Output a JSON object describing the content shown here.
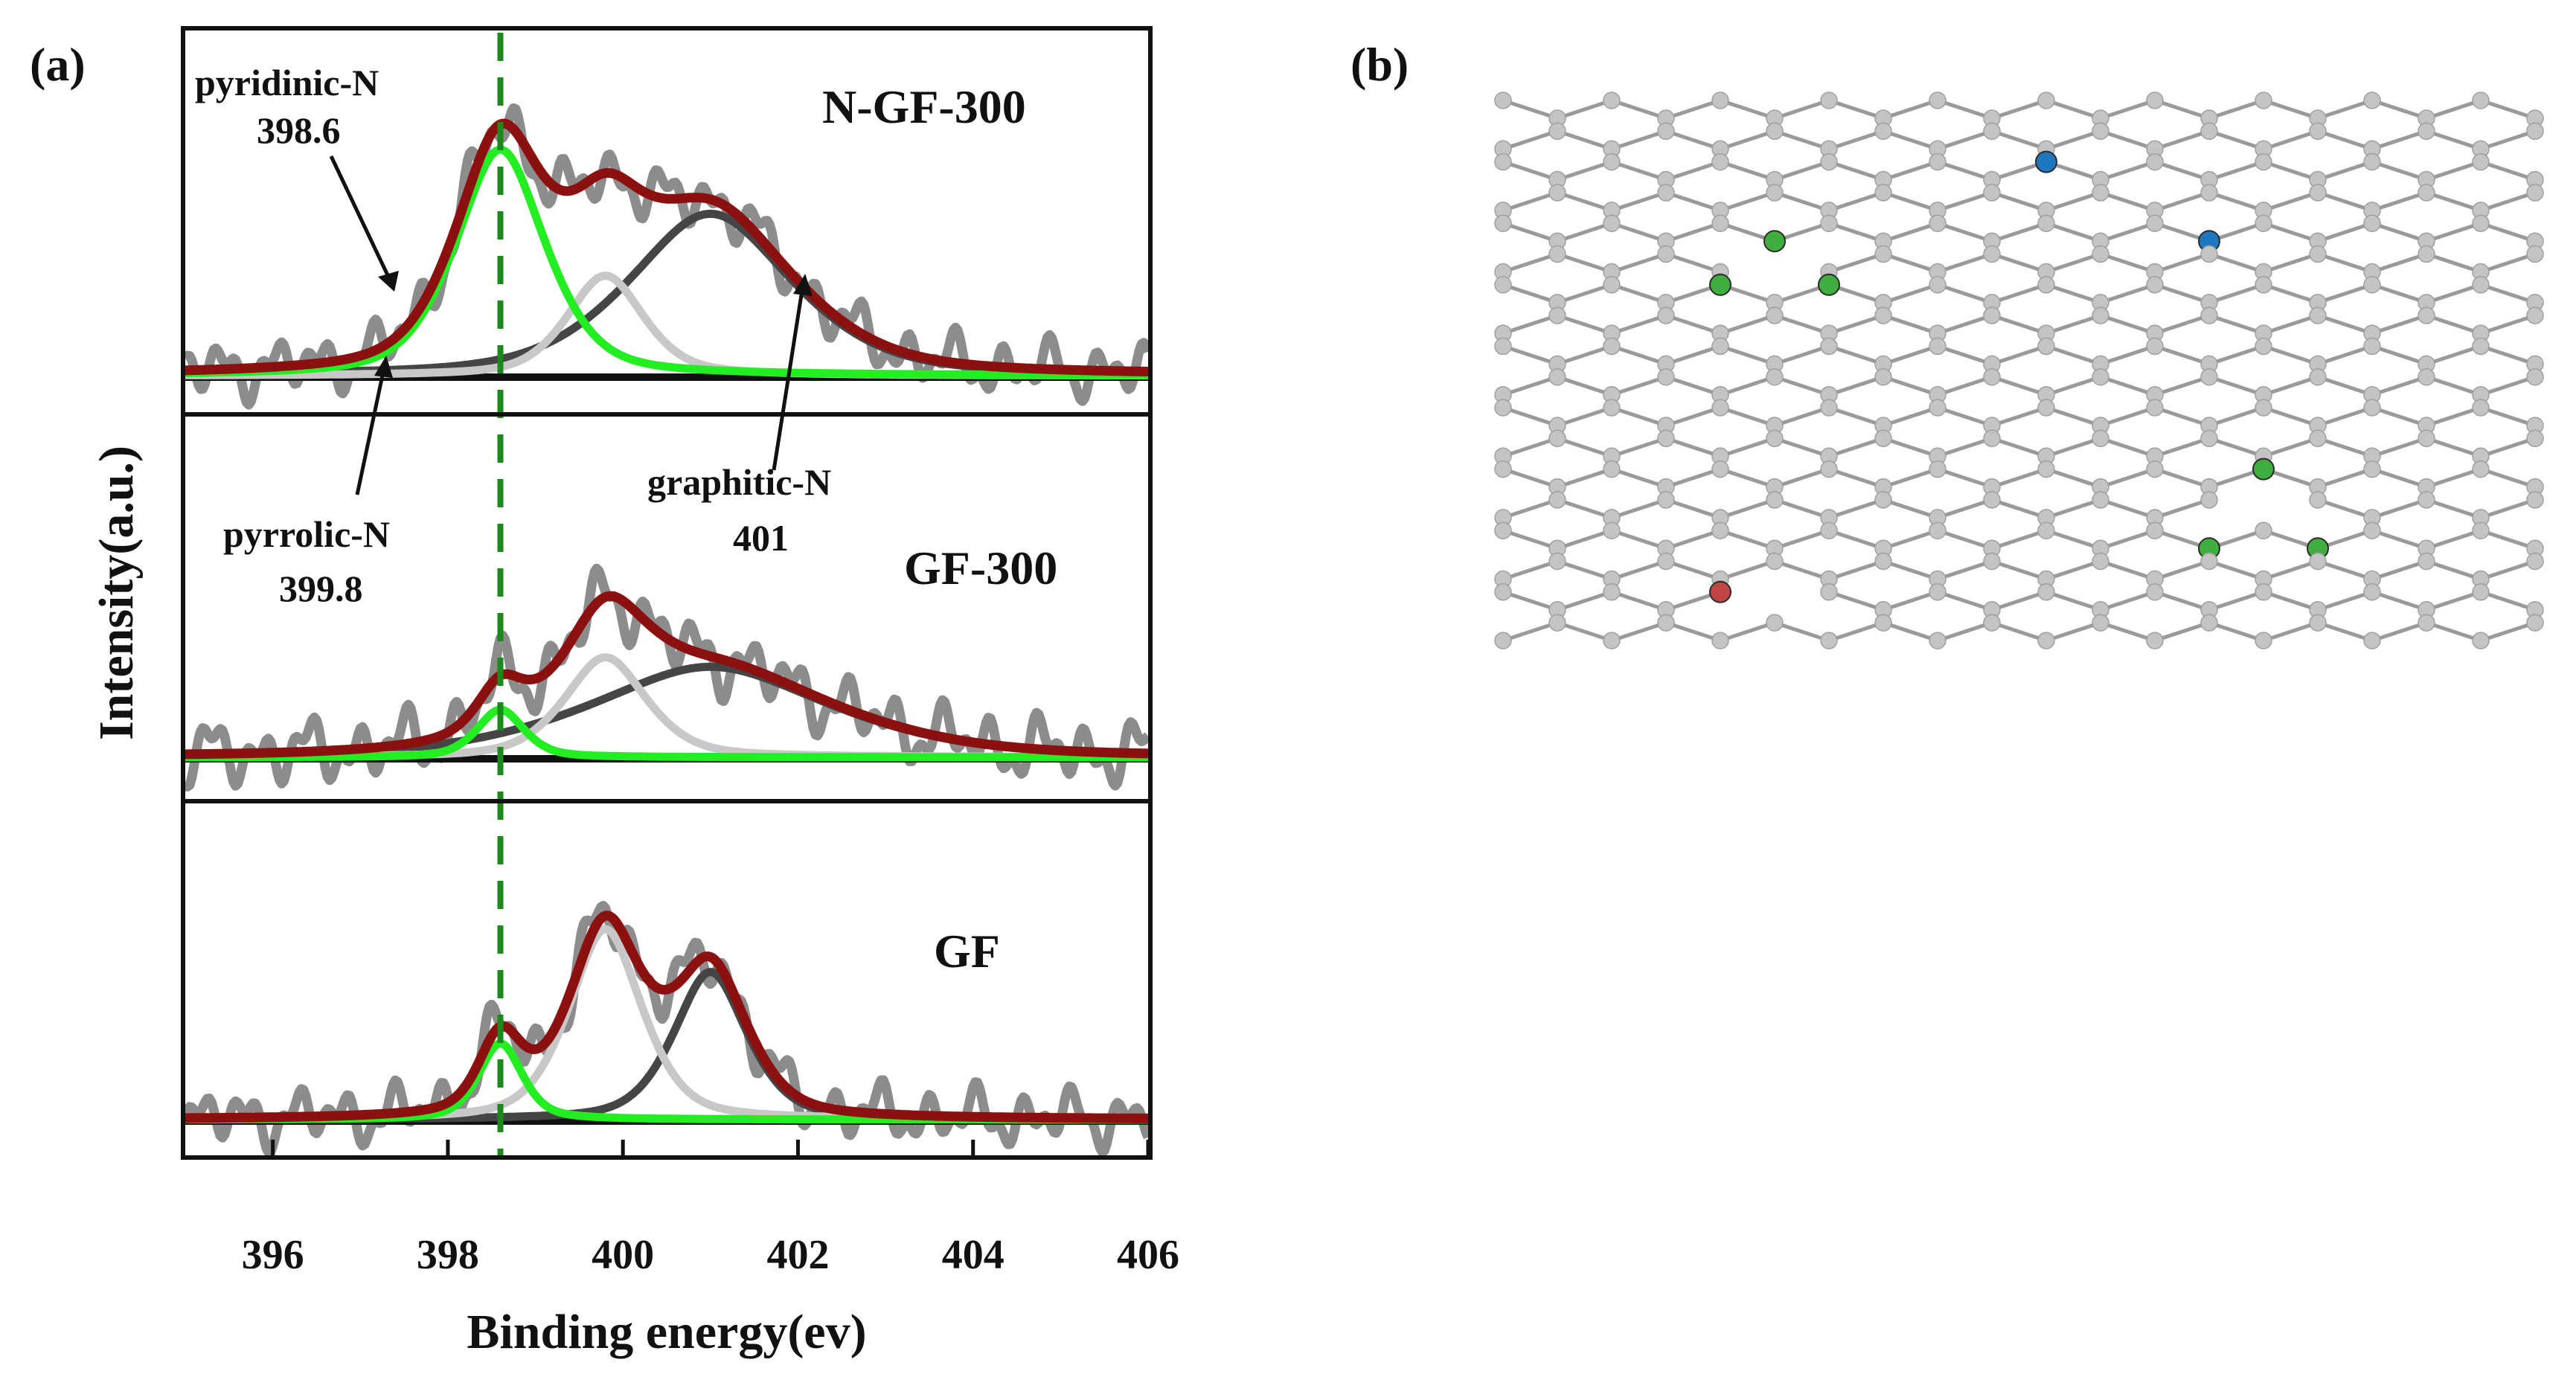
{
  "chart_data": {
    "type": "line",
    "panel_label": "(a)",
    "xlabel": "Binding energy(ev)",
    "ylabel": "Intensity(a.u.)",
    "xlim": [
      395,
      406
    ],
    "xticks": [
      396,
      398,
      400,
      402,
      404,
      406
    ],
    "reference_line_x": 398.6,
    "colors": {
      "raw": "#8c8c8c",
      "fit": "#8b1010",
      "pyridinic": "#22ee22",
      "pyrrolic": "#c8c8c8",
      "graphitic": "#454545",
      "baseline": "#111111",
      "reference": "#1a8a1a"
    },
    "annotations": [
      {
        "text": "pyridinic-N",
        "value": "398.6",
        "component": "pyridinic"
      },
      {
        "text": "pyrrolic-N",
        "value": "399.8",
        "component": "pyrrolic"
      },
      {
        "text": "graphitic-N",
        "value": "401",
        "component": "graphitic"
      }
    ],
    "subplots": [
      {
        "name": "N-GF-300",
        "ylim": [
          0,
          1.35
        ],
        "components": [
          {
            "name": "pyridinic-N",
            "center": 398.6,
            "height": 0.95,
            "sigma": 0.55,
            "gamma": 0.55
          },
          {
            "name": "pyrrolic-N",
            "center": 399.8,
            "height": 0.42,
            "sigma": 0.45,
            "gamma": 0.5
          },
          {
            "name": "graphitic-N",
            "center": 401.0,
            "height": 0.68,
            "sigma": 1.0,
            "gamma": 1.0
          }
        ],
        "noise_amp": 0.07
      },
      {
        "name": "GF-300",
        "ylim": [
          0,
          1.35
        ],
        "components": [
          {
            "name": "pyridinic-N",
            "center": 398.6,
            "height": 0.2,
            "sigma": 0.28,
            "gamma": 0.3
          },
          {
            "name": "pyrrolic-N",
            "center": 399.8,
            "height": 0.42,
            "sigma": 0.5,
            "gamma": 0.5
          },
          {
            "name": "graphitic-N",
            "center": 401.0,
            "height": 0.38,
            "sigma": 1.5,
            "gamma": 1.4
          }
        ],
        "noise_amp": 0.08
      },
      {
        "name": "GF",
        "ylim": [
          0,
          1.35
        ],
        "components": [
          {
            "name": "pyridinic-N",
            "center": 398.6,
            "height": 0.32,
            "sigma": 0.25,
            "gamma": 0.3
          },
          {
            "name": "pyrrolic-N",
            "center": 399.8,
            "height": 0.8,
            "sigma": 0.45,
            "gamma": 0.45
          },
          {
            "name": "graphitic-N",
            "center": 401.0,
            "height": 0.62,
            "sigma": 0.45,
            "gamma": 0.45
          }
        ],
        "noise_amp": 0.07
      }
    ]
  },
  "structure": {
    "panel_label": "(b)",
    "atom_colors": {
      "carbon": "#c4c4c4",
      "pyridinic": "#3fae3f",
      "graphitic": "#1f77c0",
      "pyrrolic": "#c04545",
      "bond": "#9a9a9a"
    },
    "dopants": [
      {
        "type": "graphitic",
        "row": 2,
        "col": 10
      },
      {
        "type": "graphitic",
        "row": 4,
        "col": 13
      },
      {
        "type": "pyridinic",
        "row": 4,
        "col": 5
      },
      {
        "type": "pyridinic",
        "row": 6,
        "col": 4
      },
      {
        "type": "pyridinic",
        "row": 6,
        "col": 6
      },
      {
        "type": "pyridinic",
        "row": 12,
        "col": 14
      },
      {
        "type": "pyridinic",
        "row": 14,
        "col": 13
      },
      {
        "type": "pyridinic",
        "row": 14,
        "col": 15
      },
      {
        "type": "pyrrolic",
        "row": 16,
        "col": 4
      }
    ]
  }
}
